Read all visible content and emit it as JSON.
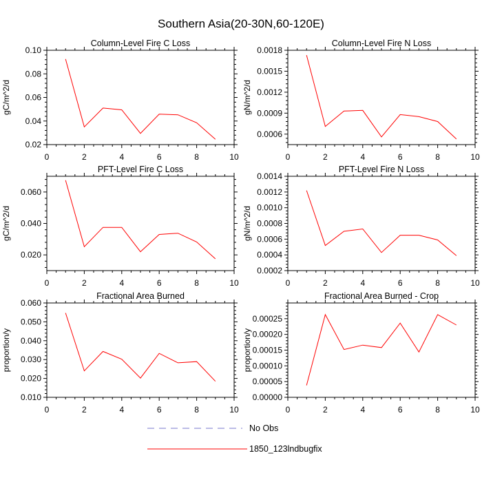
{
  "figure_title": "Southern Asia(20-30N,60-120E)",
  "legend": [
    {
      "label": "No Obs",
      "color": "#7777cc",
      "style": "dashed"
    },
    {
      "label": "1850_123lndbugfix",
      "color": "#ff0000",
      "style": "solid"
    }
  ],
  "chart_data": [
    {
      "type": "line",
      "title": "Column-Level Fire C Loss",
      "xlabel": "",
      "ylabel": "gC/m^2/d",
      "xlim": [
        0,
        10
      ],
      "ylim": [
        0.02,
        0.1
      ],
      "xticks": [
        0,
        2,
        4,
        6,
        8,
        10
      ],
      "xtick_labels": [
        "0",
        "2",
        "4",
        "6",
        "8",
        "10"
      ],
      "yticks": [
        0.02,
        0.04,
        0.06,
        0.08,
        0.1
      ],
      "ytick_labels": [
        "0.02",
        "0.04",
        "0.06",
        "0.08",
        "0.10"
      ],
      "series": [
        {
          "name": "1850_123lndbugfix",
          "color": "#ff0000",
          "x": [
            1,
            2,
            3,
            4,
            5,
            6,
            7,
            8,
            9
          ],
          "y": [
            0.0925,
            0.035,
            0.051,
            0.0495,
            0.0295,
            0.0458,
            0.0453,
            0.0385,
            0.0245
          ]
        }
      ]
    },
    {
      "type": "line",
      "title": "Column-Level Fire N Loss",
      "xlabel": "",
      "ylabel": "gN/m^2/d",
      "xlim": [
        0,
        10
      ],
      "ylim": [
        0.00045,
        0.0018
      ],
      "xticks": [
        0,
        2,
        4,
        6,
        8,
        10
      ],
      "xtick_labels": [
        "0",
        "2",
        "4",
        "6",
        "8",
        "10"
      ],
      "yticks": [
        0.0006,
        0.0009,
        0.0012,
        0.0015,
        0.0018
      ],
      "ytick_labels": [
        "0.0006",
        "0.0009",
        "0.0012",
        "0.0015",
        "0.0018"
      ],
      "series": [
        {
          "name": "1850_123lndbugfix",
          "color": "#ff0000",
          "x": [
            1,
            2,
            3,
            4,
            5,
            6,
            7,
            8,
            9
          ],
          "y": [
            0.00173,
            0.00071,
            0.00093,
            0.00094,
            0.00056,
            0.00088,
            0.00085,
            0.00078,
            0.00053
          ]
        }
      ]
    },
    {
      "type": "line",
      "title": "PFT-Level Fire C Loss",
      "xlabel": "",
      "ylabel": "gC/m^2/d",
      "xlim": [
        0,
        10
      ],
      "ylim": [
        0.01,
        0.07
      ],
      "xticks": [
        0,
        2,
        4,
        6,
        8,
        10
      ],
      "xtick_labels": [
        "0",
        "2",
        "4",
        "6",
        "8",
        "10"
      ],
      "yticks": [
        0.02,
        0.04,
        0.06
      ],
      "ytick_labels": [
        "0.020",
        "0.040",
        "0.060"
      ],
      "series": [
        {
          "name": "1850_123lndbugfix",
          "color": "#ff0000",
          "x": [
            1,
            2,
            3,
            4,
            5,
            6,
            7,
            8,
            9
          ],
          "y": [
            0.0675,
            0.0252,
            0.0375,
            0.0375,
            0.022,
            0.033,
            0.0338,
            0.0282,
            0.0175
          ]
        }
      ]
    },
    {
      "type": "line",
      "title": "PFT-Level Fire N Loss",
      "xlabel": "",
      "ylabel": "gN/m^2/d",
      "xlim": [
        0,
        10
      ],
      "ylim": [
        0.0002,
        0.0014
      ],
      "xticks": [
        0,
        2,
        4,
        6,
        8,
        10
      ],
      "xtick_labels": [
        "0",
        "2",
        "4",
        "6",
        "8",
        "10"
      ],
      "yticks": [
        0.0002,
        0.0004,
        0.0006,
        0.0008,
        0.001,
        0.0012,
        0.0014
      ],
      "ytick_labels": [
        "0.0002",
        "0.0004",
        "0.0006",
        "0.0008",
        "0.0010",
        "0.0012",
        "0.0014"
      ],
      "series": [
        {
          "name": "1850_123lndbugfix",
          "color": "#ff0000",
          "x": [
            1,
            2,
            3,
            4,
            5,
            6,
            7,
            8,
            9
          ],
          "y": [
            0.00122,
            0.00052,
            0.0007,
            0.00073,
            0.00043,
            0.00065,
            0.00065,
            0.00059,
            0.00039
          ]
        }
      ]
    },
    {
      "type": "line",
      "title": "Fractional Area Burned",
      "xlabel": "",
      "ylabel": "proportion/y",
      "xlim": [
        0,
        10
      ],
      "ylim": [
        0.01,
        0.06
      ],
      "xticks": [
        0,
        2,
        4,
        6,
        8,
        10
      ],
      "xtick_labels": [
        "0",
        "2",
        "4",
        "6",
        "8",
        "10"
      ],
      "yticks": [
        0.01,
        0.02,
        0.03,
        0.04,
        0.05,
        0.06
      ],
      "ytick_labels": [
        "0.010",
        "0.020",
        "0.030",
        "0.040",
        "0.050",
        "0.060"
      ],
      "series": [
        {
          "name": "1850_123lndbugfix",
          "color": "#ff0000",
          "x": [
            1,
            2,
            3,
            4,
            5,
            6,
            7,
            8,
            9
          ],
          "y": [
            0.0547,
            0.024,
            0.0343,
            0.0302,
            0.0202,
            0.0333,
            0.0283,
            0.0289,
            0.0185
          ]
        }
      ]
    },
    {
      "type": "line",
      "title": "Fractional Area Burned - Crop",
      "xlabel": "",
      "ylabel": "proportion/y",
      "xlim": [
        0,
        10
      ],
      "ylim": [
        0.0,
        0.0003
      ],
      "xticks": [
        0,
        2,
        4,
        6,
        8,
        10
      ],
      "xtick_labels": [
        "0",
        "2",
        "4",
        "6",
        "8",
        "10"
      ],
      "yticks": [
        0.0,
        5e-05,
        0.0001,
        0.00015,
        0.0002,
        0.00025
      ],
      "ytick_labels": [
        "0.00000",
        "0.00005",
        "0.00010",
        "0.00015",
        "0.00020",
        "0.00025"
      ],
      "series": [
        {
          "name": "1850_123lndbugfix",
          "color": "#ff0000",
          "x": [
            1,
            2,
            3,
            4,
            5,
            6,
            7,
            8,
            9
          ],
          "y": [
            3.8e-05,
            0.000263,
            0.000152,
            0.000166,
            0.000158,
            0.000236,
            0.000144,
            0.000263,
            0.00023
          ]
        }
      ]
    }
  ]
}
